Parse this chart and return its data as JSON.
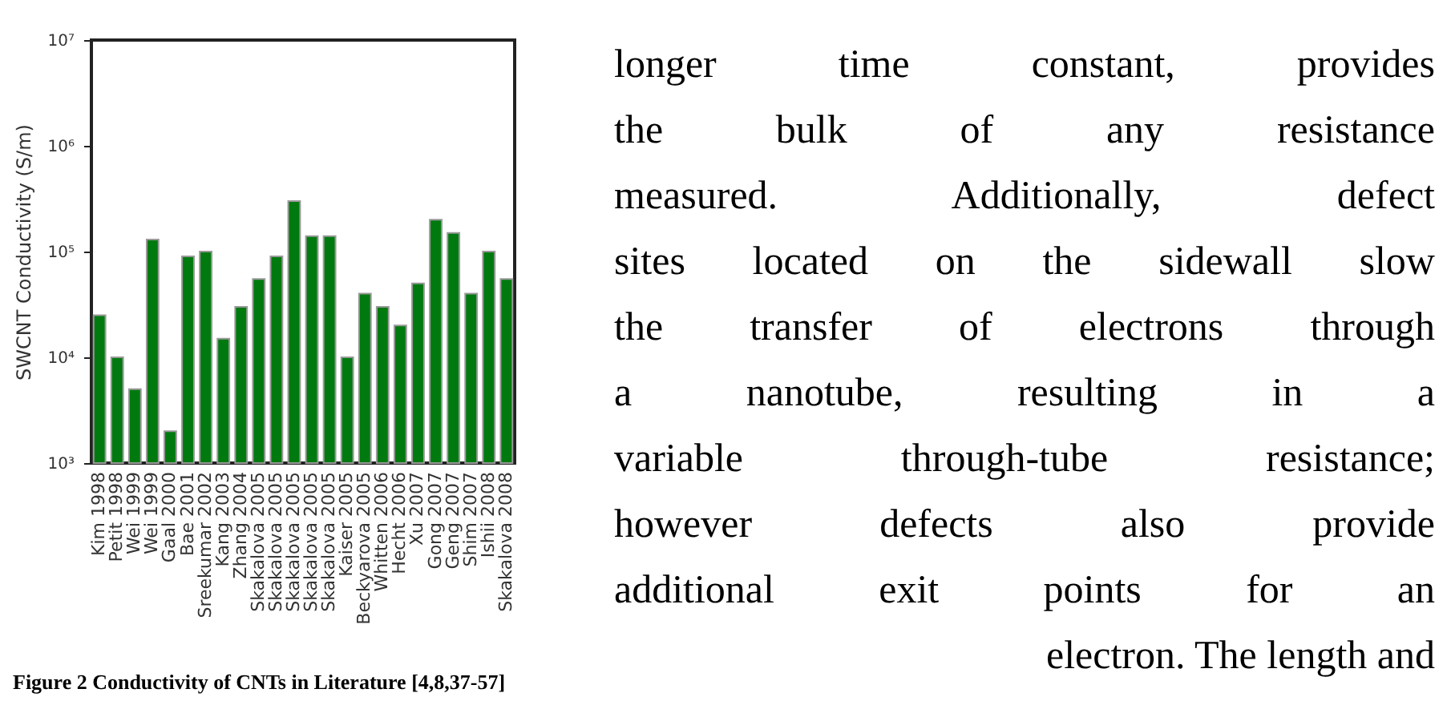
{
  "chart_data": {
    "type": "bar",
    "ylabel": "SWCNT Conductivity (S/m)",
    "categories": [
      "Kim 1998",
      "Petit 1998",
      "Wei 1999",
      "Wei 1999",
      "Gaal 2000",
      "Bae 2001",
      "Sreekumar 2002",
      "Kang 2003",
      "Zhang 2004",
      "Skakalova 2005",
      "Skakalova 2005",
      "Skakalova 2005",
      "Skakalova 2005",
      "Skakalova 2005",
      "Kaiser 2005",
      "Beckyarova 2005",
      "Whitten 2006",
      "Hecht 2006",
      "Xu 2007",
      "Gong 2007",
      "Geng 2007",
      "Shim 2007",
      "Ishii 2008",
      "Skakalova 2008"
    ],
    "values": [
      25000,
      10000,
      5000,
      130000,
      2000,
      90000,
      100000,
      15000,
      30000,
      55000,
      90000,
      300000,
      140000,
      140000,
      10000,
      40000,
      30000,
      20000,
      50000,
      200000,
      150000,
      40000,
      100000,
      55000
    ],
    "color": "#007a0f",
    "log": "y",
    "ylim": [
      1000,
      10000000
    ],
    "yticks": [
      {
        "value": 1000,
        "label": "10³"
      },
      {
        "value": 10000,
        "label": "10⁴"
      },
      {
        "value": 100000,
        "label": "10⁵"
      },
      {
        "value": 1000000,
        "label": "10⁶"
      },
      {
        "value": 10000000,
        "label": "10⁷"
      }
    ],
    "grid": false,
    "annotations": [
      "Figure 2 Conductivity of CNTs in Literature [4,8,37-57]",
      "longer time constant, provides",
      "the bulk of any resistance",
      "measured.  Additionally, defect",
      "sites located on the sidewall slow",
      "the transfer of electrons through",
      "a nanotube, resulting in a",
      "variable through-tube resistance;",
      "however defects also provide",
      "additional exit points for an",
      "electron. The length and"
    ]
  }
}
